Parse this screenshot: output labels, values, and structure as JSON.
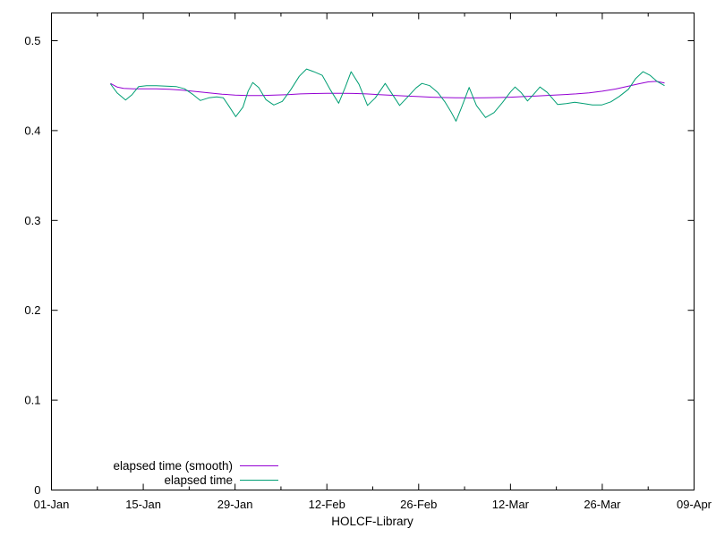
{
  "chart": {
    "xlabel": "HOLCF-Library",
    "background": "#ffffff",
    "border_color": "#000000",
    "text_color": "#000000",
    "chart_data": {
      "type": "line",
      "title": "",
      "xlabel": "HOLCF-Library",
      "ylabel": "",
      "x_unit": "date (day offset from 01-Jan)",
      "xlim_days": [
        0,
        98
      ],
      "ylim": [
        0,
        0.53
      ],
      "grid": false,
      "legend_position": "bottom-left inside",
      "x_ticks": [
        {
          "label": "01-Jan",
          "day": 0
        },
        {
          "label": "15-Jan",
          "day": 14
        },
        {
          "label": "29-Jan",
          "day": 28
        },
        {
          "label": "12-Feb",
          "day": 42
        },
        {
          "label": "26-Feb",
          "day": 56
        },
        {
          "label": "12-Mar",
          "day": 70
        },
        {
          "label": "26-Mar",
          "day": 84
        },
        {
          "label": "09-Apr",
          "day": 98
        }
      ],
      "x_minor_tick_days": [
        7,
        21,
        35,
        49,
        63,
        77,
        91
      ],
      "y_ticks": [
        {
          "label": "0",
          "value": 0.0
        },
        {
          "label": "0.1",
          "value": 0.1
        },
        {
          "label": "0.2",
          "value": 0.2
        },
        {
          "label": "0.3",
          "value": 0.3
        },
        {
          "label": "0.4",
          "value": 0.4
        },
        {
          "label": "0.5",
          "value": 0.5
        }
      ]
    },
    "series": [
      {
        "name": "elapsed time (smooth)",
        "color": "#9400d3",
        "points": [
          [
            9.0,
            0.4525
          ],
          [
            10,
            0.4485
          ],
          [
            11,
            0.447
          ],
          [
            12.5,
            0.4465
          ],
          [
            14,
            0.4465
          ],
          [
            16,
            0.4465
          ],
          [
            18,
            0.446
          ],
          [
            20,
            0.445
          ],
          [
            22,
            0.4435
          ],
          [
            24,
            0.442
          ],
          [
            26,
            0.4405
          ],
          [
            28,
            0.4395
          ],
          [
            30,
            0.439
          ],
          [
            32,
            0.439
          ],
          [
            34,
            0.4395
          ],
          [
            36,
            0.44
          ],
          [
            38,
            0.4408
          ],
          [
            40,
            0.4412
          ],
          [
            42,
            0.4415
          ],
          [
            44,
            0.4415
          ],
          [
            46,
            0.4413
          ],
          [
            48,
            0.4408
          ],
          [
            50,
            0.44
          ],
          [
            52,
            0.4392
          ],
          [
            54,
            0.4385
          ],
          [
            56,
            0.4378
          ],
          [
            58,
            0.4372
          ],
          [
            60,
            0.4368
          ],
          [
            62,
            0.4365
          ],
          [
            64,
            0.4364
          ],
          [
            66,
            0.4365
          ],
          [
            68,
            0.4368
          ],
          [
            70,
            0.4372
          ],
          [
            72,
            0.4378
          ],
          [
            74,
            0.4385
          ],
          [
            76,
            0.4392
          ],
          [
            78,
            0.44
          ],
          [
            80,
            0.4408
          ],
          [
            82,
            0.442
          ],
          [
            84,
            0.4438
          ],
          [
            86,
            0.4462
          ],
          [
            88,
            0.4495
          ],
          [
            89.5,
            0.452
          ],
          [
            91,
            0.4542
          ],
          [
            92.3,
            0.4548
          ],
          [
            93.5,
            0.453
          ]
        ]
      },
      {
        "name": "elapsed time",
        "color": "#009e73",
        "points": [
          [
            9.0,
            0.452
          ],
          [
            10,
            0.442
          ],
          [
            11.3,
            0.434
          ],
          [
            12.3,
            0.44
          ],
          [
            13.3,
            0.449
          ],
          [
            14.5,
            0.45
          ],
          [
            16,
            0.45
          ],
          [
            17.5,
            0.4495
          ],
          [
            19,
            0.449
          ],
          [
            20.3,
            0.4465
          ],
          [
            21.6,
            0.44
          ],
          [
            22.7,
            0.4335
          ],
          [
            24,
            0.4365
          ],
          [
            25.2,
            0.4375
          ],
          [
            26.2,
            0.4365
          ],
          [
            27,
            0.428
          ],
          [
            28.1,
            0.4155
          ],
          [
            29.2,
            0.426
          ],
          [
            30,
            0.444
          ],
          [
            30.7,
            0.4535
          ],
          [
            31.6,
            0.448
          ],
          [
            32.7,
            0.4345
          ],
          [
            33.9,
            0.4285
          ],
          [
            35.2,
            0.4325
          ],
          [
            36.5,
            0.4455
          ],
          [
            37.8,
            0.4605
          ],
          [
            38.9,
            0.4685
          ],
          [
            40,
            0.4655
          ],
          [
            41.3,
            0.4615
          ],
          [
            42.6,
            0.4445
          ],
          [
            43.8,
            0.4305
          ],
          [
            44.8,
            0.448
          ],
          [
            45.7,
            0.4655
          ],
          [
            46.9,
            0.4515
          ],
          [
            48.2,
            0.428
          ],
          [
            49.4,
            0.4365
          ],
          [
            50.9,
            0.4525
          ],
          [
            53.1,
            0.428
          ],
          [
            54.4,
            0.438
          ],
          [
            55.6,
            0.4475
          ],
          [
            56.5,
            0.4525
          ],
          [
            57.7,
            0.45
          ],
          [
            58.9,
            0.4425
          ],
          [
            60,
            0.432
          ],
          [
            61,
            0.42
          ],
          [
            61.7,
            0.4105
          ],
          [
            62.5,
            0.425
          ],
          [
            63.7,
            0.448
          ],
          [
            64.8,
            0.428
          ],
          [
            66.2,
            0.4145
          ],
          [
            67.5,
            0.42
          ],
          [
            68.8,
            0.4315
          ],
          [
            70,
            0.443
          ],
          [
            70.7,
            0.4485
          ],
          [
            71.6,
            0.4425
          ],
          [
            72.6,
            0.433
          ],
          [
            73.5,
            0.44
          ],
          [
            74.5,
            0.4485
          ],
          [
            75.6,
            0.4425
          ],
          [
            77.2,
            0.429
          ],
          [
            78.5,
            0.43
          ],
          [
            79.8,
            0.4315
          ],
          [
            81.2,
            0.43
          ],
          [
            82.5,
            0.4285
          ],
          [
            83.9,
            0.4285
          ],
          [
            85.3,
            0.432
          ],
          [
            86.6,
            0.438
          ],
          [
            88,
            0.446
          ],
          [
            89.1,
            0.458
          ],
          [
            90.2,
            0.4655
          ],
          [
            91.3,
            0.4615
          ],
          [
            92.4,
            0.4545
          ],
          [
            93.5,
            0.45
          ]
        ]
      }
    ],
    "legend": {
      "entries": [
        "elapsed time (smooth)",
        "elapsed time"
      ]
    }
  }
}
